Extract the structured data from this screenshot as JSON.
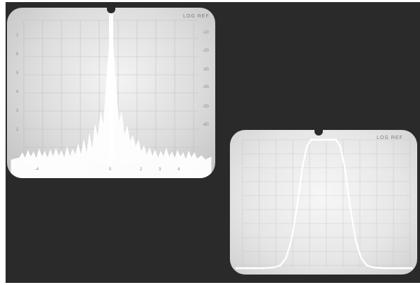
{
  "screens": {
    "left": {
      "mode_label": "LOG REF",
      "db_scale": [
        "-10",
        "-20",
        "-30",
        "-40",
        "-50",
        "-60"
      ],
      "div_scale": [
        "7",
        "6",
        "5",
        "4",
        "3",
        "2"
      ],
      "freq_scale": [
        "-4",
        "0",
        "2",
        "3",
        "4"
      ]
    },
    "right": {
      "mode_label": "LOG REF"
    }
  },
  "colors": {
    "background": "#2a2a2a",
    "trace": "#ffffff",
    "graticule": "#b9b9b9"
  }
}
